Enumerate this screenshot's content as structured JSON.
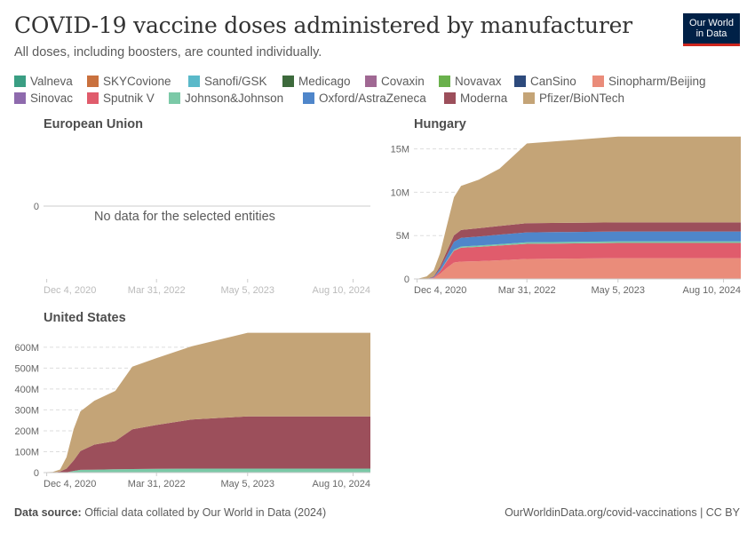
{
  "header": {
    "title": "COVID-19 vaccine doses administered by manufacturer",
    "subtitle": "All doses, including boosters, are counted individually.",
    "logo_line1": "Our World",
    "logo_line2": "in Data"
  },
  "legend": {
    "items": [
      {
        "name": "Valneva",
        "color": "#3a9e83"
      },
      {
        "name": "SKYCovione",
        "color": "#c9713e"
      },
      {
        "name": "Sanofi/GSK",
        "color": "#5ab9c9"
      },
      {
        "name": "Medicago",
        "color": "#3d6a3c"
      },
      {
        "name": "Covaxin",
        "color": "#a06893"
      },
      {
        "name": "Novavax",
        "color": "#6ab14c"
      },
      {
        "name": "CanSino",
        "color": "#2d4a7c"
      },
      {
        "name": "Sinopharm/Beijing",
        "color": "#ea8c7a"
      },
      {
        "name": "Sinovac",
        "color": "#8e6aad"
      },
      {
        "name": "Sputnik V",
        "color": "#e05c6c"
      },
      {
        "name": "Johnson&Johnson",
        "color": "#7bc9a7"
      },
      {
        "name": "Oxford/AstraZeneca",
        "color": "#4f86ca"
      },
      {
        "name": "Moderna",
        "color": "#9c4f5b"
      },
      {
        "name": "Pfizer/BioNTech",
        "color": "#c4a477"
      }
    ]
  },
  "panels": {
    "eu": {
      "title": "European Union",
      "no_data": "No data for the selected entities"
    },
    "hungary": {
      "title": "Hungary"
    },
    "us": {
      "title": "United States"
    }
  },
  "chart_data": [
    {
      "type": "area",
      "title": "European Union",
      "x": [],
      "series": [],
      "x_ticks": [
        "Dec 4, 2020",
        "Mar 31, 2022",
        "May 5, 2023",
        "Aug 10, 2024"
      ],
      "y_ticks": [
        "0"
      ],
      "grid": true
    },
    {
      "type": "area",
      "title": "Hungary",
      "stacked": true,
      "x": [
        "2020-12-04",
        "2021-01-15",
        "2021-02-15",
        "2021-03-15",
        "2021-04-15",
        "2021-05-15",
        "2021-06-15",
        "2021-09-01",
        "2021-12-01",
        "2022-03-31",
        "2023-05-05",
        "2024-08-10"
      ],
      "series": [
        {
          "name": "Sinopharm/Beijing",
          "values": [
            0,
            0.0,
            0.1,
            0.6,
            1.3,
            1.9,
            2.0,
            2.05,
            2.15,
            2.3,
            2.4,
            2.4
          ]
        },
        {
          "name": "Sputnik V",
          "values": [
            0,
            0.0,
            0.05,
            0.3,
            0.8,
            1.35,
            1.6,
            1.65,
            1.7,
            1.75,
            1.75,
            1.75
          ]
        },
        {
          "name": "Johnson&Johnson",
          "values": [
            0,
            0,
            0,
            0.02,
            0.08,
            0.12,
            0.14,
            0.15,
            0.16,
            0.17,
            0.17,
            0.17
          ]
        },
        {
          "name": "Oxford/AstraZeneca",
          "values": [
            0,
            0.0,
            0.05,
            0.3,
            0.6,
            0.9,
            1.0,
            1.05,
            1.1,
            1.15,
            1.15,
            1.15
          ]
        },
        {
          "name": "Moderna",
          "values": [
            0,
            0.0,
            0.1,
            0.25,
            0.5,
            0.75,
            0.9,
            0.95,
            1.0,
            1.05,
            1.05,
            1.05
          ]
        },
        {
          "name": "Pfizer/BioNTech",
          "values": [
            0,
            0.3,
            0.7,
            1.5,
            3.0,
            4.4,
            5.1,
            5.6,
            6.6,
            9.2,
            9.9,
            9.9
          ]
        }
      ],
      "x_ticks": [
        "Dec 4, 2020",
        "Mar 31, 2022",
        "May 5, 2023",
        "Aug 10, 2024"
      ],
      "y_ticks": [
        "0",
        "5M",
        "10M",
        "15M"
      ],
      "ylim": [
        0,
        16800000
      ],
      "grid": true
    },
    {
      "type": "area",
      "title": "United States",
      "stacked": true,
      "x": [
        "2020-12-04",
        "2020-12-31",
        "2021-02-01",
        "2021-03-01",
        "2021-04-01",
        "2021-05-01",
        "2021-07-01",
        "2021-10-01",
        "2021-12-15",
        "2022-03-31",
        "2022-09-01",
        "2023-05-05",
        "2024-08-10"
      ],
      "series": [
        {
          "name": "Johnson&Johnson",
          "values": [
            0,
            0,
            0,
            1,
            8,
            13,
            14,
            16,
            17,
            18,
            19,
            19,
            19
          ]
        },
        {
          "name": "Moderna",
          "values": [
            0,
            0,
            5,
            18,
            50,
            90,
            120,
            135,
            190,
            210,
            235,
            250,
            250
          ]
        },
        {
          "name": "Pfizer/BioNTech",
          "values": [
            2,
            3,
            10,
            55,
            150,
            190,
            210,
            240,
            300,
            320,
            350,
            400,
            400
          ]
        }
      ],
      "x_ticks": [
        "Dec 4, 2020",
        "Mar 31, 2022",
        "May 5, 2023",
        "Aug 10, 2024"
      ],
      "y_ticks": [
        "0",
        "100M",
        "200M",
        "300M",
        "400M",
        "500M",
        "600M"
      ],
      "ylim": [
        0,
        680000000
      ],
      "grid": true
    }
  ],
  "footer": {
    "source_label": "Data source:",
    "source_text": "Official data collated by Our World in Data (2024)",
    "right_text": "OurWorldinData.org/covid-vaccinations | CC BY"
  }
}
